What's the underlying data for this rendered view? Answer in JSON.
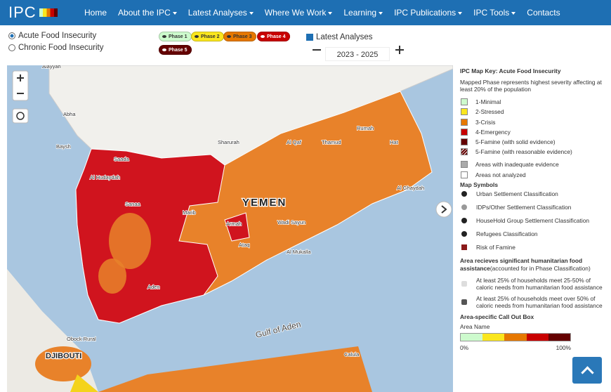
{
  "nav": {
    "logo": "IPC",
    "items": [
      "Home",
      "About the IPC",
      "Latest Analyses",
      "Where We Work",
      "Learning",
      "IPC Publications",
      "IPC Tools",
      "Contacts"
    ],
    "dropdown": [
      false,
      true,
      true,
      true,
      true,
      true,
      true,
      false
    ]
  },
  "filters": {
    "options": [
      "Acute Food Insecurity",
      "Chronic Food Insecurity"
    ],
    "selected": 0,
    "phases": [
      {
        "label": "Phase 1",
        "color": "#cdfacd"
      },
      {
        "label": "Phase 2",
        "color": "#fae61e"
      },
      {
        "label": "Phase 3",
        "color": "#e67800"
      },
      {
        "label": "Phase 4",
        "color": "#c80000"
      },
      {
        "label": "Phase 5",
        "color": "#640000"
      }
    ],
    "latest_analyses": "Latest Analyses",
    "period": "2023 - 2025"
  },
  "map": {
    "labels": [
      "Alayyah",
      "Abha",
      "Baysh",
      "Sharurah",
      "Al Qaf",
      "Thamud",
      "Rumah",
      "Hat",
      "YEMEN",
      "Al Ghaydah",
      "Marib",
      "Armah",
      "Wadi Sayun",
      "Al Mukalla",
      "Ataq",
      "Aden",
      "Al Hudaydah",
      "Sanaa",
      "Saada",
      "Gulf of Aden",
      "DJIBOUTI",
      "Obock Rural",
      "Calula"
    ]
  },
  "legend": {
    "title": "IPC Map Key: Acute Food Insecurity",
    "description": "Mapped Phase represents highest severity affecting at least 20% of the population",
    "items": [
      {
        "label": "1-Minimal",
        "color": "#cdfacd"
      },
      {
        "label": "2-Stressed",
        "color": "#fae61e"
      },
      {
        "label": "3-Crisis",
        "color": "#e67800"
      },
      {
        "label": "4-Emergency",
        "color": "#c80000"
      },
      {
        "label": "5-Famine (with solid evidence)",
        "color": "#640000"
      },
      {
        "label": "5-Famine (with reasonable evidence)",
        "color": "repeating-linear-gradient(135deg,#640000 0 2px,#fff 2px 3px)"
      },
      {
        "label": "Areas with inadequate evidence",
        "color": "#aaaaaa"
      },
      {
        "label": "Areas not analyzed",
        "color": "#ffffff"
      }
    ],
    "symbols_title": "Map Symbols",
    "symbols": [
      "Urban Settlement Classification",
      "IDPs/Other Settlement Classification",
      "HouseHold Group Settlement Classification",
      "Refugees Classification",
      "Risk of Famine"
    ],
    "assistance_title": "Area recieves significant humanitarian food assistance",
    "assistance_note": "(accounted for in Phase Classification)",
    "assistance": [
      "At least 25% of households meet 25-50% of caloric needs from humanitarian food assistance",
      "At least 25% of households meet over 50% of caloric needs from humanitarian food assistance"
    ],
    "callout_title": "Area-specific Call Out Box",
    "callout_area": "Area Name",
    "callout_min": "0%",
    "callout_max": "100%"
  }
}
